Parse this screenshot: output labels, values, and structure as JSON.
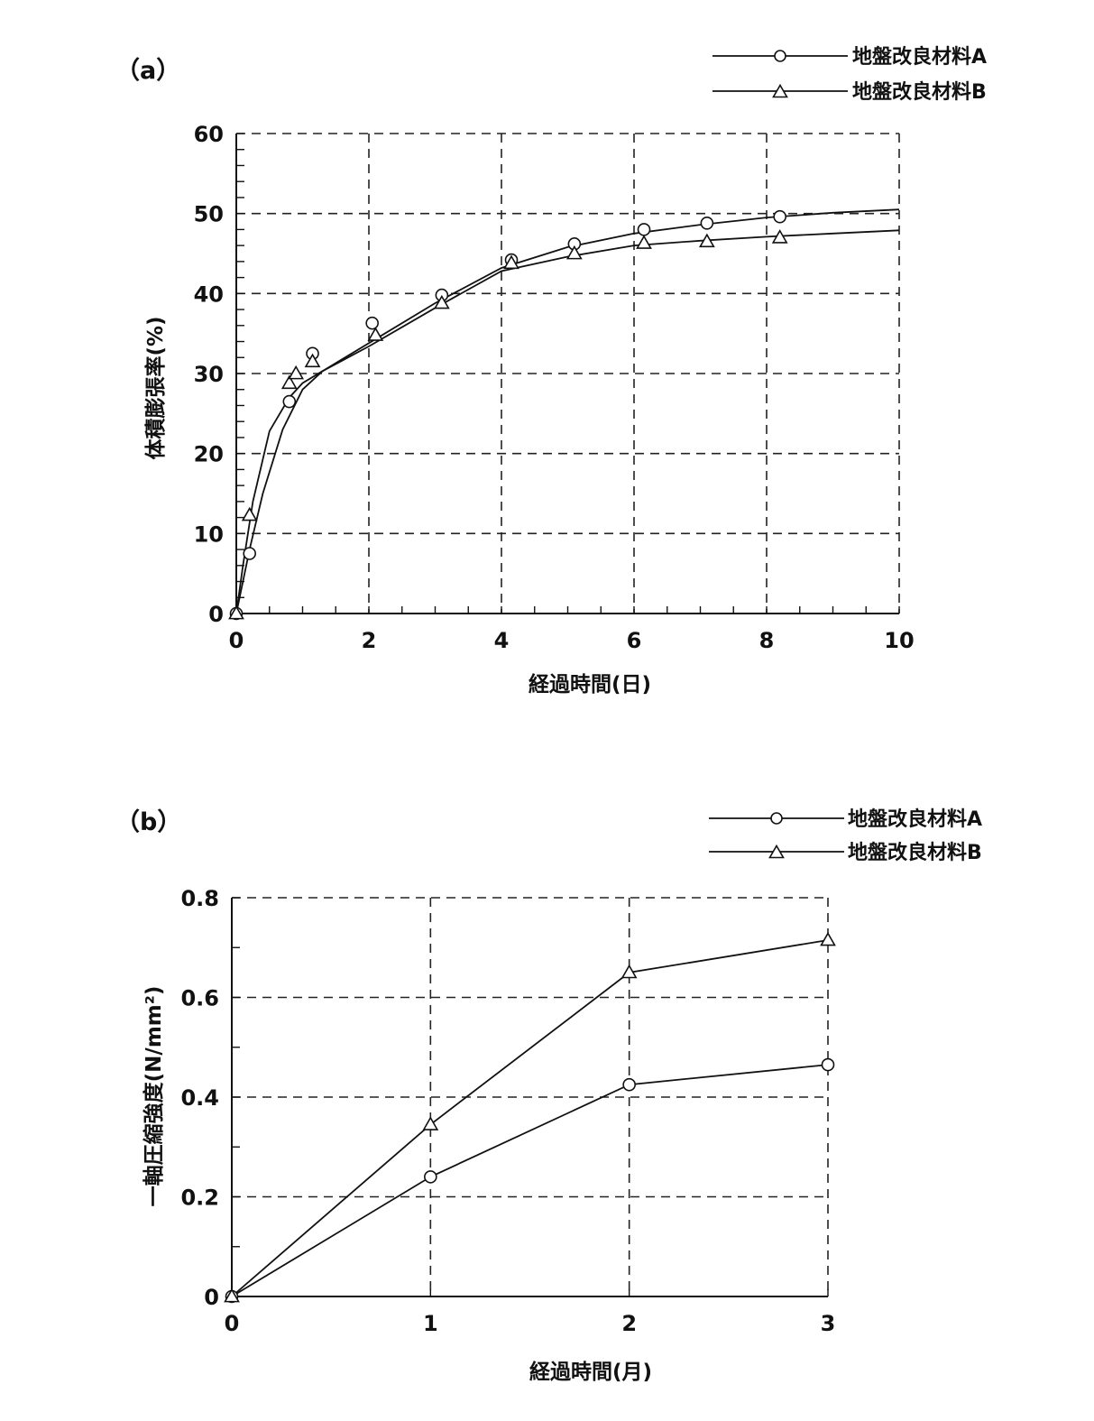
{
  "chart_data": [
    {
      "type": "scatter",
      "panel_label": "（a）",
      "xlabel": "経過時間(日)",
      "ylabel": "体積膨張率(%)",
      "xlim": [
        0,
        10
      ],
      "ylim": [
        0,
        60
      ],
      "xticks": [
        "0",
        "2",
        "4",
        "6",
        "8",
        "10"
      ],
      "yticks": [
        "0",
        "10",
        "20",
        "30",
        "40",
        "50",
        "60"
      ],
      "grid": true,
      "legend_position": "top-right",
      "series": [
        {
          "name": "地盤改良材料A",
          "marker": "circle",
          "points": [
            [
              0,
              0
            ],
            [
              0.2,
              7.5
            ],
            [
              0.8,
              26.5
            ],
            [
              1.15,
              32.5
            ],
            [
              2.05,
              36.3
            ],
            [
              3.1,
              39.8
            ],
            [
              4.15,
              44.2
            ],
            [
              5.1,
              46.2
            ],
            [
              6.15,
              48
            ],
            [
              7.1,
              48.8
            ],
            [
              8.2,
              49.6
            ]
          ],
          "curve": [
            [
              0,
              0
            ],
            [
              0.2,
              8
            ],
            [
              0.4,
              15
            ],
            [
              0.7,
              23
            ],
            [
              1.0,
              28
            ],
            [
              1.3,
              30.3
            ],
            [
              2,
              33.8
            ],
            [
              3,
              38.8
            ],
            [
              4,
              43.2
            ],
            [
              5,
              45.8
            ],
            [
              6,
              47.5
            ],
            [
              7,
              48.6
            ],
            [
              8,
              49.5
            ],
            [
              9,
              50.1
            ],
            [
              10,
              50.5
            ]
          ]
        },
        {
          "name": "地盤改良材料B",
          "marker": "triangle",
          "points": [
            [
              0,
              0
            ],
            [
              0.2,
              12.3
            ],
            [
              0.8,
              28.8
            ],
            [
              0.9,
              30
            ],
            [
              1.15,
              31.5
            ],
            [
              2.1,
              34.8
            ],
            [
              3.1,
              38.8
            ],
            [
              4.15,
              43.8
            ],
            [
              5.1,
              45
            ],
            [
              6.15,
              46.3
            ],
            [
              7.1,
              46.5
            ],
            [
              8.2,
              47
            ]
          ],
          "curve": [
            [
              0,
              0
            ],
            [
              0.1,
              6
            ],
            [
              0.25,
              14
            ],
            [
              0.5,
              22.8
            ],
            [
              0.8,
              27
            ],
            [
              1.0,
              28.8
            ],
            [
              1.3,
              30.3
            ],
            [
              2,
              33.4
            ],
            [
              3,
              38.2
            ],
            [
              4,
              42.8
            ],
            [
              5,
              44.6
            ],
            [
              6,
              46
            ],
            [
              7,
              46.6
            ],
            [
              8,
              47.1
            ],
            [
              9,
              47.5
            ],
            [
              10,
              47.9
            ]
          ]
        }
      ]
    },
    {
      "type": "line",
      "panel_label": "（b）",
      "xlabel": "経過時間(月)",
      "ylabel": "一軸圧縮強度(N/mm²)",
      "xlim": [
        0,
        3
      ],
      "ylim": [
        0,
        0.8
      ],
      "xticks": [
        "0",
        "1",
        "2",
        "3"
      ],
      "yticks": [
        "0",
        "0.2",
        "0.4",
        "0.6",
        "0.8"
      ],
      "grid": true,
      "legend_position": "top-right",
      "series": [
        {
          "name": "地盤改良材料A",
          "marker": "circle",
          "points": [
            [
              0,
              0
            ],
            [
              1,
              0.24
            ],
            [
              2,
              0.425
            ],
            [
              3,
              0.465
            ]
          ]
        },
        {
          "name": "地盤改良材料B",
          "marker": "triangle",
          "points": [
            [
              0,
              0
            ],
            [
              1,
              0.345
            ],
            [
              2,
              0.65
            ],
            [
              3,
              0.715
            ]
          ]
        }
      ]
    }
  ]
}
